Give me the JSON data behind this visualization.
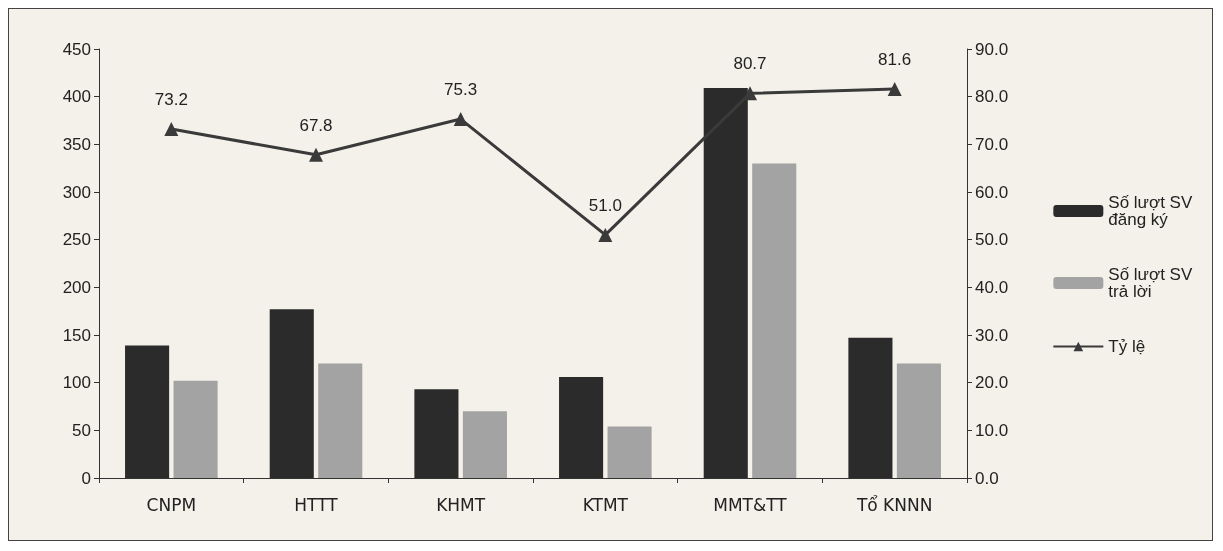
{
  "chart_data": {
    "type": "bar",
    "categories": [
      "CNPM",
      "HTTT",
      "KHMT",
      "KTMT",
      "MMT&TT",
      "Tổ KNNN"
    ],
    "series": [
      {
        "name": "Số lượt SV đăng ký",
        "color": "#2b2b2b",
        "values": [
          139,
          177,
          93,
          106,
          409,
          147
        ]
      },
      {
        "name": "Số lượt SV trả lời",
        "color": "#a3a3a3",
        "values": [
          102,
          120,
          70,
          54,
          330,
          120
        ]
      },
      {
        "name": "Tỷ lệ",
        "type": "line",
        "axis": "y2",
        "color": "#3a3a3a",
        "marker": "triangle",
        "values": [
          73.2,
          67.8,
          75.3,
          51.0,
          80.7,
          81.6
        ],
        "value_labels": [
          "73.2",
          "67.8",
          "75.3",
          "51.0",
          "80.7",
          "81.6"
        ]
      }
    ],
    "ylim": [
      0,
      450
    ],
    "yticks": [
      0,
      50,
      100,
      150,
      200,
      250,
      300,
      350,
      400,
      450
    ],
    "y2lim": [
      0,
      90
    ],
    "y2ticks": [
      {
        "value": 0,
        "label": "0.0"
      },
      {
        "value": 10,
        "label": "10.0"
      },
      {
        "value": 20,
        "label": "20.0"
      },
      {
        "value": 30,
        "label": "30.0"
      },
      {
        "value": 40,
        "label": "40.0"
      },
      {
        "value": 50,
        "label": "50.0"
      },
      {
        "value": 60,
        "label": "60.0"
      },
      {
        "value": 70,
        "label": "70.0"
      },
      {
        "value": 80,
        "label": "80.0"
      },
      {
        "value": 90,
        "label": "90.0"
      }
    ],
    "grid": false,
    "legend": "right"
  }
}
